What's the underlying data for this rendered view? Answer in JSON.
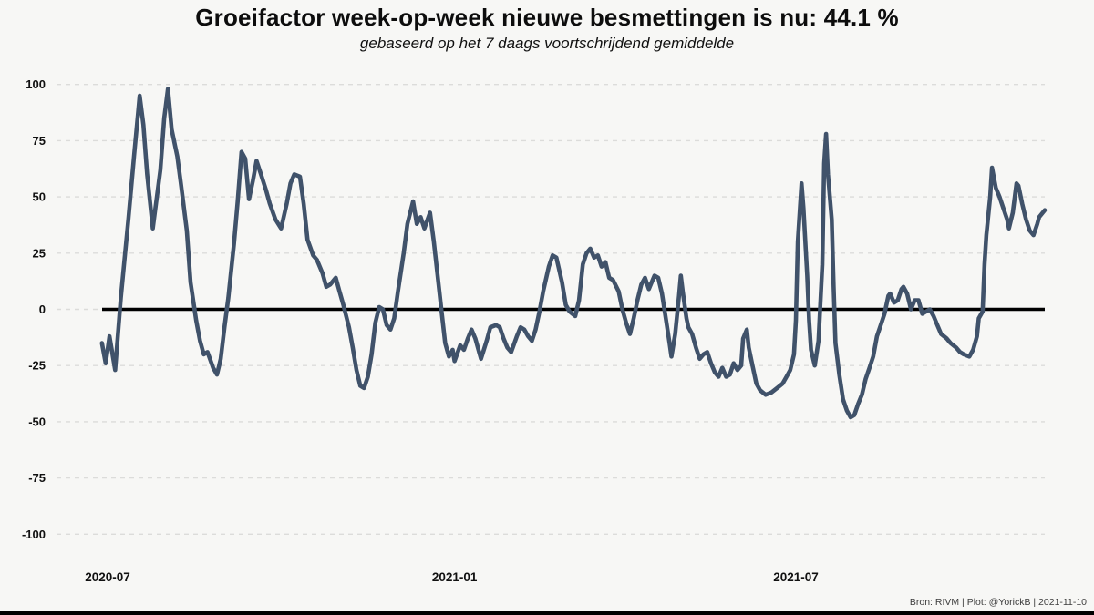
{
  "title": {
    "text": "Groeifactor week-op-week nieuwe besmettingen is nu:  44.1 %",
    "subtitle": "gebaseerd op het 7 daags voortschrijdend gemiddelde"
  },
  "footer": {
    "credit": "Bron: RIVM | Plot: @YorickB |  2021-11-10"
  },
  "colors": {
    "line": "#40526a",
    "zero_line": "#000000",
    "grid": "#dcdcda",
    "background": "#f7f7f5",
    "tick_text": "#111111"
  },
  "chart_data": {
    "type": "line",
    "title": "Groeifactor week-op-week nieuwe besmettingen is nu:  44.1 %",
    "subtitle": "gebaseerd op het 7 daags voortschrijdend gemiddelde",
    "current_value": "44.1 %",
    "grid": "dashed-horizontal",
    "legend": "none",
    "y_axis": {
      "ticks": [
        100,
        75,
        50,
        25,
        0,
        -25,
        -50,
        -75,
        -100
      ],
      "range": [
        -110,
        105
      ]
    },
    "x_axis": {
      "ticks": [
        {
          "label": "2020-07",
          "date": "2020-07-01"
        },
        {
          "label": "2021-01",
          "date": "2021-01-01"
        },
        {
          "label": "2021-07",
          "date": "2021-07-01"
        }
      ],
      "range": [
        "2020-06-28",
        "2021-11-10"
      ]
    },
    "zero_line": true,
    "series": [
      {
        "name": "groeifactor",
        "points": [
          [
            "2020-06-28",
            -15
          ],
          [
            "2020-06-30",
            -24
          ],
          [
            "2020-07-02",
            -12
          ],
          [
            "2020-07-05",
            -27
          ],
          [
            "2020-07-08",
            5
          ],
          [
            "2020-07-12",
            40
          ],
          [
            "2020-07-15",
            68
          ],
          [
            "2020-07-18",
            95
          ],
          [
            "2020-07-20",
            82
          ],
          [
            "2020-07-22",
            60
          ],
          [
            "2020-07-25",
            36
          ],
          [
            "2020-07-29",
            62
          ],
          [
            "2020-07-31",
            85
          ],
          [
            "2020-08-02",
            98
          ],
          [
            "2020-08-04",
            80
          ],
          [
            "2020-08-07",
            68
          ],
          [
            "2020-08-09",
            55
          ],
          [
            "2020-08-12",
            35
          ],
          [
            "2020-08-14",
            12
          ],
          [
            "2020-08-17",
            -5
          ],
          [
            "2020-08-19",
            -14
          ],
          [
            "2020-08-21",
            -20
          ],
          [
            "2020-08-23",
            -19
          ],
          [
            "2020-08-26",
            -26
          ],
          [
            "2020-08-28",
            -29
          ],
          [
            "2020-08-30",
            -22
          ],
          [
            "2020-09-01",
            -8
          ],
          [
            "2020-09-03",
            5
          ],
          [
            "2020-09-06",
            29
          ],
          [
            "2020-09-08",
            48
          ],
          [
            "2020-09-10",
            70
          ],
          [
            "2020-09-12",
            67
          ],
          [
            "2020-09-14",
            49
          ],
          [
            "2020-09-16",
            57
          ],
          [
            "2020-09-18",
            66
          ],
          [
            "2020-09-20",
            61
          ],
          [
            "2020-09-23",
            53
          ],
          [
            "2020-09-25",
            47
          ],
          [
            "2020-09-28",
            40
          ],
          [
            "2020-10-01",
            36
          ],
          [
            "2020-10-04",
            47
          ],
          [
            "2020-10-06",
            56
          ],
          [
            "2020-10-08",
            60
          ],
          [
            "2020-10-11",
            59
          ],
          [
            "2020-10-13",
            47
          ],
          [
            "2020-10-15",
            31
          ],
          [
            "2020-10-18",
            24
          ],
          [
            "2020-10-20",
            22
          ],
          [
            "2020-10-23",
            16
          ],
          [
            "2020-10-25",
            10
          ],
          [
            "2020-10-27",
            11
          ],
          [
            "2020-10-30",
            14
          ],
          [
            "2020-11-01",
            8
          ],
          [
            "2020-11-03",
            2
          ],
          [
            "2020-11-06",
            -8
          ],
          [
            "2020-11-08",
            -17
          ],
          [
            "2020-11-10",
            -27
          ],
          [
            "2020-11-12",
            -34
          ],
          [
            "2020-11-14",
            -35
          ],
          [
            "2020-11-16",
            -30
          ],
          [
            "2020-11-18",
            -20
          ],
          [
            "2020-11-20",
            -6
          ],
          [
            "2020-11-22",
            1
          ],
          [
            "2020-11-24",
            0
          ],
          [
            "2020-11-26",
            -7
          ],
          [
            "2020-11-28",
            -9
          ],
          [
            "2020-11-30",
            -4
          ],
          [
            "2020-12-02",
            8
          ],
          [
            "2020-12-05",
            25
          ],
          [
            "2020-12-07",
            38
          ],
          [
            "2020-12-10",
            48
          ],
          [
            "2020-12-12",
            38
          ],
          [
            "2020-12-14",
            41
          ],
          [
            "2020-12-16",
            36
          ],
          [
            "2020-12-19",
            43
          ],
          [
            "2020-12-21",
            30
          ],
          [
            "2020-12-23",
            15
          ],
          [
            "2020-12-25",
            0
          ],
          [
            "2020-12-27",
            -15
          ],
          [
            "2020-12-29",
            -21
          ],
          [
            "2020-12-31",
            -18
          ],
          [
            "2021-01-01",
            -23
          ],
          [
            "2021-01-04",
            -16
          ],
          [
            "2021-01-06",
            -18
          ],
          [
            "2021-01-08",
            -13
          ],
          [
            "2021-01-10",
            -9
          ],
          [
            "2021-01-12",
            -13
          ],
          [
            "2021-01-14",
            -19
          ],
          [
            "2021-01-15",
            -22
          ],
          [
            "2021-01-18",
            -14
          ],
          [
            "2021-01-20",
            -8
          ],
          [
            "2021-01-23",
            -7
          ],
          [
            "2021-01-25",
            -8
          ],
          [
            "2021-01-27",
            -13
          ],
          [
            "2021-01-29",
            -17
          ],
          [
            "2021-01-31",
            -19
          ],
          [
            "2021-02-03",
            -12
          ],
          [
            "2021-02-05",
            -8
          ],
          [
            "2021-02-07",
            -9
          ],
          [
            "2021-02-09",
            -12
          ],
          [
            "2021-02-11",
            -14
          ],
          [
            "2021-02-13",
            -9
          ],
          [
            "2021-02-15",
            -1
          ],
          [
            "2021-02-17",
            8
          ],
          [
            "2021-02-20",
            19
          ],
          [
            "2021-02-22",
            24
          ],
          [
            "2021-02-24",
            23
          ],
          [
            "2021-02-27",
            12
          ],
          [
            "2021-03-01",
            2
          ],
          [
            "2021-03-03",
            -1
          ],
          [
            "2021-03-06",
            -3
          ],
          [
            "2021-03-08",
            4
          ],
          [
            "2021-03-10",
            20
          ],
          [
            "2021-03-12",
            25
          ],
          [
            "2021-03-14",
            27
          ],
          [
            "2021-03-16",
            23
          ],
          [
            "2021-03-18",
            24
          ],
          [
            "2021-03-20",
            19
          ],
          [
            "2021-03-22",
            21
          ],
          [
            "2021-03-24",
            14
          ],
          [
            "2021-03-26",
            13
          ],
          [
            "2021-03-29",
            8
          ],
          [
            "2021-03-31",
            0
          ],
          [
            "2021-04-02",
            -6
          ],
          [
            "2021-04-04",
            -11
          ],
          [
            "2021-04-06",
            -4
          ],
          [
            "2021-04-08",
            4
          ],
          [
            "2021-04-10",
            11
          ],
          [
            "2021-04-12",
            14
          ],
          [
            "2021-04-14",
            9
          ],
          [
            "2021-04-17",
            15
          ],
          [
            "2021-04-19",
            14
          ],
          [
            "2021-04-21",
            7
          ],
          [
            "2021-04-23",
            -4
          ],
          [
            "2021-04-25",
            -15
          ],
          [
            "2021-04-26",
            -21
          ],
          [
            "2021-04-28",
            -11
          ],
          [
            "2021-04-30",
            6
          ],
          [
            "2021-05-01",
            15
          ],
          [
            "2021-05-02",
            8
          ],
          [
            "2021-05-04",
            -4
          ],
          [
            "2021-05-05",
            -8
          ],
          [
            "2021-05-07",
            -11
          ],
          [
            "2021-05-09",
            -17
          ],
          [
            "2021-05-11",
            -22
          ],
          [
            "2021-05-13",
            -20
          ],
          [
            "2021-05-15",
            -19
          ],
          [
            "2021-05-17",
            -24
          ],
          [
            "2021-05-19",
            -28
          ],
          [
            "2021-05-21",
            -30
          ],
          [
            "2021-05-23",
            -26
          ],
          [
            "2021-05-25",
            -30
          ],
          [
            "2021-05-27",
            -29
          ],
          [
            "2021-05-29",
            -24
          ],
          [
            "2021-05-31",
            -27
          ],
          [
            "2021-06-02",
            -25
          ],
          [
            "2021-06-03",
            -13
          ],
          [
            "2021-06-05",
            -9
          ],
          [
            "2021-06-06",
            -17
          ],
          [
            "2021-06-08",
            -25
          ],
          [
            "2021-06-10",
            -33
          ],
          [
            "2021-06-12",
            -36
          ],
          [
            "2021-06-15",
            -38
          ],
          [
            "2021-06-18",
            -37
          ],
          [
            "2021-06-21",
            -35
          ],
          [
            "2021-06-24",
            -33
          ],
          [
            "2021-06-26",
            -30
          ],
          [
            "2021-06-28",
            -27
          ],
          [
            "2021-06-30",
            -20
          ],
          [
            "2021-07-01",
            -5
          ],
          [
            "2021-07-02",
            30
          ],
          [
            "2021-07-04",
            56
          ],
          [
            "2021-07-05",
            45
          ],
          [
            "2021-07-07",
            15
          ],
          [
            "2021-07-08",
            -5
          ],
          [
            "2021-07-09",
            -18
          ],
          [
            "2021-07-11",
            -25
          ],
          [
            "2021-07-13",
            -14
          ],
          [
            "2021-07-15",
            20
          ],
          [
            "2021-07-16",
            65
          ],
          [
            "2021-07-17",
            78
          ],
          [
            "2021-07-18",
            60
          ],
          [
            "2021-07-20",
            40
          ],
          [
            "2021-07-21",
            10
          ],
          [
            "2021-07-22",
            -15
          ],
          [
            "2021-07-24",
            -29
          ],
          [
            "2021-07-26",
            -40
          ],
          [
            "2021-07-28",
            -45
          ],
          [
            "2021-07-30",
            -48
          ],
          [
            "2021-08-01",
            -47
          ],
          [
            "2021-08-03",
            -42
          ],
          [
            "2021-08-05",
            -38
          ],
          [
            "2021-08-07",
            -31
          ],
          [
            "2021-08-09",
            -26
          ],
          [
            "2021-08-11",
            -21
          ],
          [
            "2021-08-13",
            -12
          ],
          [
            "2021-08-15",
            -7
          ],
          [
            "2021-08-17",
            -2
          ],
          [
            "2021-08-19",
            6
          ],
          [
            "2021-08-20",
            7
          ],
          [
            "2021-08-22",
            3
          ],
          [
            "2021-08-24",
            4
          ],
          [
            "2021-08-26",
            9
          ],
          [
            "2021-08-27",
            10
          ],
          [
            "2021-08-29",
            7
          ],
          [
            "2021-08-31",
            0
          ],
          [
            "2021-09-02",
            4
          ],
          [
            "2021-09-04",
            4
          ],
          [
            "2021-09-06",
            -2
          ],
          [
            "2021-09-08",
            -1
          ],
          [
            "2021-09-10",
            0
          ],
          [
            "2021-09-12",
            -3
          ],
          [
            "2021-09-14",
            -7
          ],
          [
            "2021-09-16",
            -11
          ],
          [
            "2021-09-19",
            -13
          ],
          [
            "2021-09-21",
            -15
          ],
          [
            "2021-09-24",
            -17
          ],
          [
            "2021-09-26",
            -19
          ],
          [
            "2021-09-28",
            -20
          ],
          [
            "2021-10-01",
            -21
          ],
          [
            "2021-10-03",
            -18
          ],
          [
            "2021-10-05",
            -12
          ],
          [
            "2021-10-06",
            -4
          ],
          [
            "2021-10-08",
            -1
          ],
          [
            "2021-10-09",
            20
          ],
          [
            "2021-10-10",
            33
          ],
          [
            "2021-10-12",
            50
          ],
          [
            "2021-10-13",
            63
          ],
          [
            "2021-10-15",
            54
          ],
          [
            "2021-10-17",
            50
          ],
          [
            "2021-10-19",
            45
          ],
          [
            "2021-10-21",
            40
          ],
          [
            "2021-10-22",
            36
          ],
          [
            "2021-10-24",
            43
          ],
          [
            "2021-10-26",
            56
          ],
          [
            "2021-10-27",
            55
          ],
          [
            "2021-10-29",
            47
          ],
          [
            "2021-10-31",
            40
          ],
          [
            "2021-11-02",
            35
          ],
          [
            "2021-11-04",
            33
          ],
          [
            "2021-11-06",
            38
          ],
          [
            "2021-11-07",
            41
          ],
          [
            "2021-11-10",
            44.1
          ]
        ]
      }
    ]
  }
}
